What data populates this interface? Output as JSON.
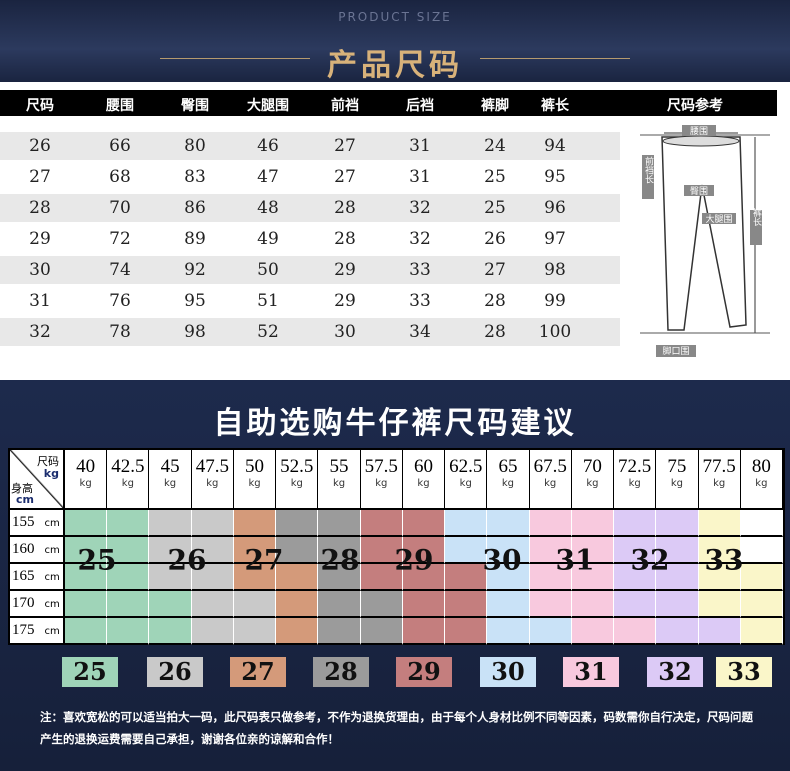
{
  "header": {
    "subtitle": "PRODUCT SIZE",
    "title": "产品尺码"
  },
  "size_table": {
    "columns": [
      "尺码",
      "腰围",
      "臀围",
      "大腿围",
      "前裆",
      "后裆",
      "裤脚",
      "裤长",
      "尺码参考"
    ],
    "rows": [
      [
        "26",
        "66",
        "80",
        "46",
        "27",
        "31",
        "24",
        "94"
      ],
      [
        "27",
        "68",
        "83",
        "47",
        "27",
        "31",
        "25",
        "95"
      ],
      [
        "28",
        "70",
        "86",
        "48",
        "28",
        "32",
        "25",
        "96"
      ],
      [
        "29",
        "72",
        "89",
        "49",
        "28",
        "32",
        "26",
        "97"
      ],
      [
        "30",
        "74",
        "92",
        "50",
        "29",
        "33",
        "27",
        "98"
      ],
      [
        "31",
        "76",
        "95",
        "51",
        "29",
        "33",
        "28",
        "99"
      ],
      [
        "32",
        "78",
        "98",
        "52",
        "30",
        "34",
        "28",
        "100"
      ]
    ]
  },
  "diagram_labels": {
    "waist": "腰围",
    "hip": "臀围",
    "front_rise": "前裆长",
    "thigh": "大腿围",
    "length": "裤长",
    "hem": "脚口围"
  },
  "recommend": {
    "title": "自助选购牛仔裤尺码建议",
    "corner_top": "尺码",
    "corner_kg": "kg",
    "corner_left": "身高",
    "corner_cm": "cm",
    "weights": [
      "40",
      "42.5",
      "45",
      "47.5",
      "50",
      "52.5",
      "55",
      "57.5",
      "60",
      "62.5",
      "65",
      "67.5",
      "70",
      "72.5",
      "75",
      "77.5",
      "80"
    ],
    "weight_unit": "kg",
    "heights": [
      "155",
      "160",
      "165",
      "170",
      "175"
    ],
    "height_unit": "cm",
    "grid": [
      [
        "25",
        "25",
        "26",
        "26",
        "27",
        "28",
        "28",
        "29",
        "29",
        "30",
        "30",
        "31",
        "31",
        "32",
        "32",
        "33",
        ""
      ],
      [
        "25",
        "25",
        "26",
        "26",
        "27",
        "28",
        "28",
        "29",
        "29",
        "30",
        "30",
        "31",
        "31",
        "32",
        "32",
        "33",
        ""
      ],
      [
        "25",
        "25",
        "26",
        "26",
        "27",
        "27",
        "28",
        "29",
        "29",
        "29",
        "30",
        "31",
        "31",
        "32",
        "32",
        "33",
        "33"
      ],
      [
        "25",
        "25",
        "25",
        "26",
        "26",
        "27",
        "28",
        "28",
        "29",
        "29",
        "30",
        "31",
        "31",
        "32",
        "32",
        "33",
        "33"
      ],
      [
        "25",
        "25",
        "25",
        "26",
        "26",
        "27",
        "28",
        "28",
        "29",
        "29",
        "30",
        "30",
        "31",
        "31",
        "32",
        "32",
        "33"
      ]
    ],
    "size_labels": [
      "25",
      "26",
      "27",
      "28",
      "29",
      "30",
      "31",
      "32",
      "33"
    ],
    "colors": {
      "25": "#9fd4b8",
      "26": "#c9c9c9",
      "27": "#d49a7a",
      "28": "#9b9b9b",
      "29": "#c47e7e",
      "30": "#c9e2f7",
      "31": "#f8c9de",
      "32": "#dccaf6",
      "33": "#faf6c9",
      "": "#ffffff"
    }
  },
  "note": "注：喜欢宽松的可以适当拍大一码，此尺码表只做参考，不作为退换货理由，由于每个人身材比例不同等因素，码数需你自行决定，尺码问题产生的退换运费需要自己承担，谢谢各位亲的谅解和合作！"
}
